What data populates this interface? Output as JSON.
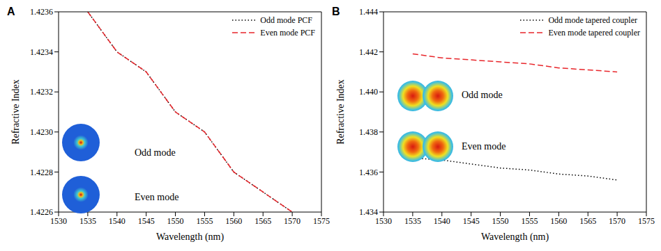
{
  "chart_data": [
    {
      "type": "line",
      "title": "A",
      "xlabel": "Wavelength (nm)",
      "ylabel": "Refractive Index",
      "x": [
        1535,
        1540,
        1545,
        1550,
        1555,
        1560,
        1565,
        1570
      ],
      "xlim": [
        1530,
        1575
      ],
      "xticks": [
        1530,
        1535,
        1540,
        1545,
        1550,
        1555,
        1560,
        1565,
        1570,
        1575
      ],
      "ylim": [
        1.4226,
        1.4236
      ],
      "yticks": [
        1.4226,
        1.4228,
        {
          "value": 1.423,
          "label": "1.4230"
        },
        1.4232,
        1.4234,
        1.4236
      ],
      "grid": false,
      "legend": "upper right",
      "series": [
        {
          "name": "Odd mode PCF",
          "color": "#000000",
          "line_style": "dotted",
          "values": [
            1.4236,
            1.4234,
            1.4233,
            1.4231,
            1.423,
            1.4228,
            1.4227,
            1.4226
          ]
        },
        {
          "name": "Even mode PCF",
          "color": "#e8262b",
          "line_style": "dashed",
          "values": [
            1.4236,
            1.4234,
            1.4233,
            1.4231,
            1.423,
            1.4228,
            1.4227,
            1.4226
          ]
        }
      ],
      "annotations": [
        "Odd mode",
        "Even mode"
      ]
    },
    {
      "type": "line",
      "title": "B",
      "xlabel": "Wavelength (nm)",
      "ylabel": "Refractive Index",
      "x": [
        1535,
        1540,
        1545,
        1550,
        1555,
        1560,
        1565,
        1570
      ],
      "xlim": [
        1530,
        1575
      ],
      "xticks": [
        1530,
        1535,
        1540,
        1545,
        1550,
        1555,
        1560,
        1565,
        1570,
        1575
      ],
      "ylim": [
        1.434,
        1.444
      ],
      "yticks": [
        1.434,
        1.436,
        1.438,
        {
          "value": 1.44,
          "label": "1.440"
        },
        1.442,
        1.444
      ],
      "grid": false,
      "legend": "upper right",
      "series": [
        {
          "name": "Odd mode tapered coupler",
          "color": "#000000",
          "line_style": "dotted",
          "values": [
            1.4367,
            1.4366,
            1.4364,
            1.4362,
            1.4361,
            1.4359,
            1.4358,
            1.4356
          ]
        },
        {
          "name": "Even mode tapered coupler",
          "color": "#e8262b",
          "line_style": "dashed",
          "values": [
            1.4419,
            1.4417,
            1.4416,
            1.4415,
            1.4414,
            1.4412,
            1.4411,
            1.441
          ]
        }
      ],
      "annotations": [
        "Odd mode",
        "Even mode"
      ]
    }
  ]
}
